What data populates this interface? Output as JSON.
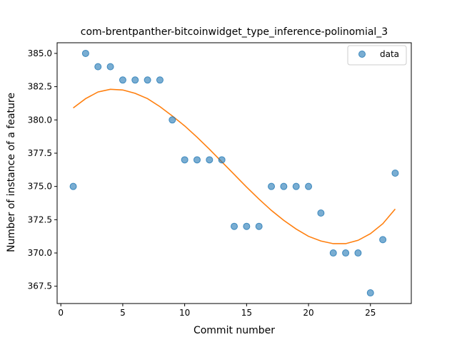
{
  "chart_data": {
    "type": "scatter",
    "title": "com-brentpanther-bitcoinwidget_type_inference-polinomial_3",
    "xlabel": "Commit number",
    "ylabel": "Number of instance of a feature",
    "xlim": [
      -0.3,
      28.3
    ],
    "ylim": [
      366.2,
      385.8
    ],
    "xticks": [
      0,
      5,
      10,
      15,
      20,
      25
    ],
    "yticks": [
      367.5,
      370.0,
      372.5,
      375.0,
      377.5,
      380.0,
      382.5,
      385.0
    ],
    "xtick_labels": [
      "0",
      "5",
      "10",
      "15",
      "20",
      "25"
    ],
    "ytick_labels": [
      "367.5",
      "370.0",
      "372.5",
      "375.0",
      "377.5",
      "380.0",
      "382.5",
      "385.0"
    ],
    "legend_position": "top-right",
    "colors": {
      "points": "#1f77b4",
      "fit": "#ff7f0e"
    },
    "series": [
      {
        "name": "data",
        "kind": "scatter",
        "x": [
          1,
          2,
          3,
          4,
          5,
          6,
          7,
          8,
          9,
          10,
          11,
          12,
          13,
          14,
          15,
          16,
          17,
          18,
          19,
          20,
          21,
          22,
          23,
          24,
          25,
          26,
          27
        ],
        "y": [
          375,
          385,
          384,
          384,
          383,
          383,
          383,
          383,
          380,
          377,
          377,
          377,
          377,
          372,
          372,
          372,
          375,
          375,
          375,
          375,
          373,
          370,
          370,
          370,
          367,
          371,
          376
        ]
      },
      {
        "kind": "line",
        "x": [
          1,
          2,
          3,
          4,
          5,
          6,
          7,
          8,
          9,
          10,
          11,
          12,
          13,
          14,
          15,
          16,
          17,
          18,
          19,
          20,
          21,
          22,
          23,
          24,
          25,
          26,
          27
        ],
        "y": [
          380.9,
          381.6,
          382.1,
          382.3,
          382.25,
          382.0,
          381.6,
          381.0,
          380.3,
          379.55,
          378.7,
          377.8,
          376.85,
          375.9,
          374.95,
          374.05,
          373.2,
          372.45,
          371.8,
          371.25,
          370.9,
          370.7,
          370.7,
          370.95,
          371.45,
          372.2,
          373.3
        ]
      }
    ]
  }
}
